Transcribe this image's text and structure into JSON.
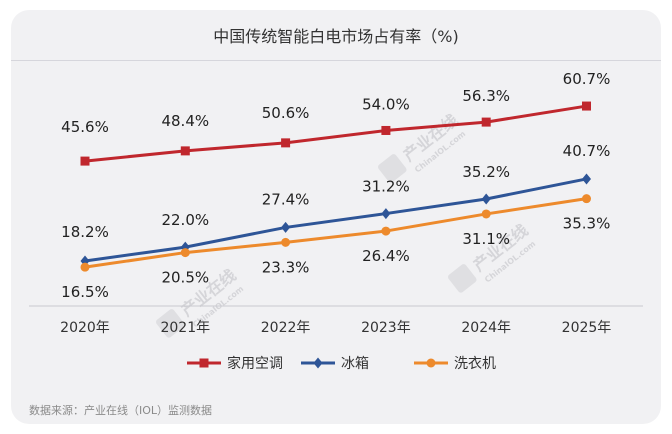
{
  "chart_data": {
    "type": "line",
    "title": "中国传统智能白电市场占有率（%)",
    "categories": [
      "2020年",
      "2021年",
      "2022年",
      "2023年",
      "2024年",
      "2025年"
    ],
    "series": [
      {
        "name": "家用空调",
        "color": "#c0272d",
        "marker": "square",
        "values": [
          45.6,
          48.4,
          50.6,
          54.0,
          56.3,
          60.7
        ],
        "labels": [
          "45.6%",
          "48.4%",
          "50.6%",
          "54.0%",
          "56.3%",
          "60.7%"
        ]
      },
      {
        "name": "冰箱",
        "color": "#2e5597",
        "marker": "diamond",
        "values": [
          18.2,
          22.0,
          27.4,
          31.2,
          35.2,
          40.7
        ],
        "labels": [
          "18.2%",
          "22.0%",
          "27.4%",
          "31.2%",
          "35.2%",
          "40.7%"
        ]
      },
      {
        "name": "洗衣机",
        "color": "#ed8a2c",
        "marker": "circle",
        "values": [
          16.5,
          20.5,
          23.3,
          26.4,
          31.1,
          35.3
        ],
        "labels": [
          "16.5%",
          "20.5%",
          "23.3%",
          "26.4%",
          "31.1%",
          "35.3%"
        ]
      }
    ],
    "legend": "bottom-center",
    "grid": false
  },
  "watermark": {
    "text": "产业在线",
    "subtext": "ChinaIOL.com"
  },
  "source": "数据来源：产业在线（IOL）监测数据"
}
